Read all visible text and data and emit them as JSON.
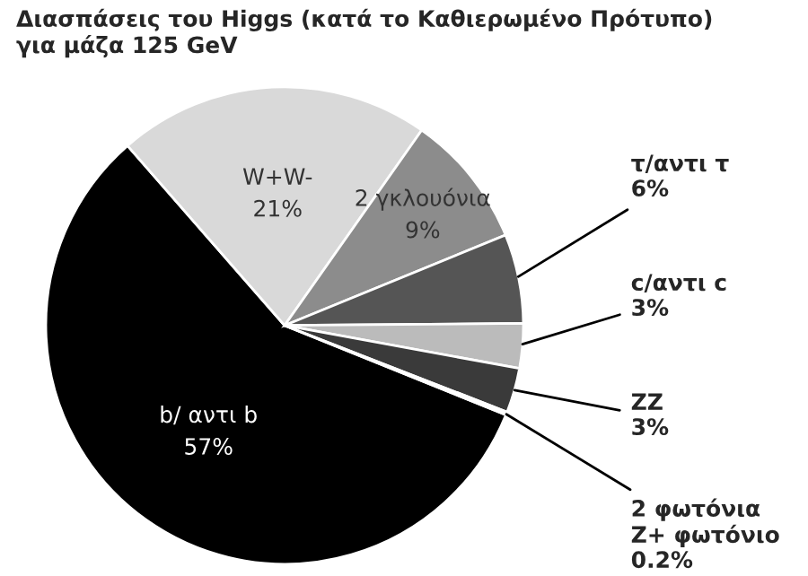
{
  "chart_data": {
    "type": "pie",
    "title": "Διασπάσεις του Higgs (κατά το Καθιερωμένο Πρότυπο)\nγια μάζα 125 GeV",
    "categories": [
      "b/ αντι b",
      "W+W-",
      "2 γκλουόνια",
      "τ/αντι τ",
      "c/αντι c",
      "ZZ",
      "2 φωτόνια\nZ+ φωτόνιο"
    ],
    "values": [
      57,
      21,
      9,
      6,
      3,
      3,
      0.2
    ],
    "value_labels": [
      "57%",
      "21%",
      "9%",
      "6%",
      "3%",
      "3%",
      "0.2%"
    ],
    "colors": [
      "#000000",
      "#d9d9d9",
      "#8c8c8c",
      "#555555",
      "#bbbbbb",
      "#3a3a3a",
      "#ffffff"
    ],
    "legend": false
  }
}
